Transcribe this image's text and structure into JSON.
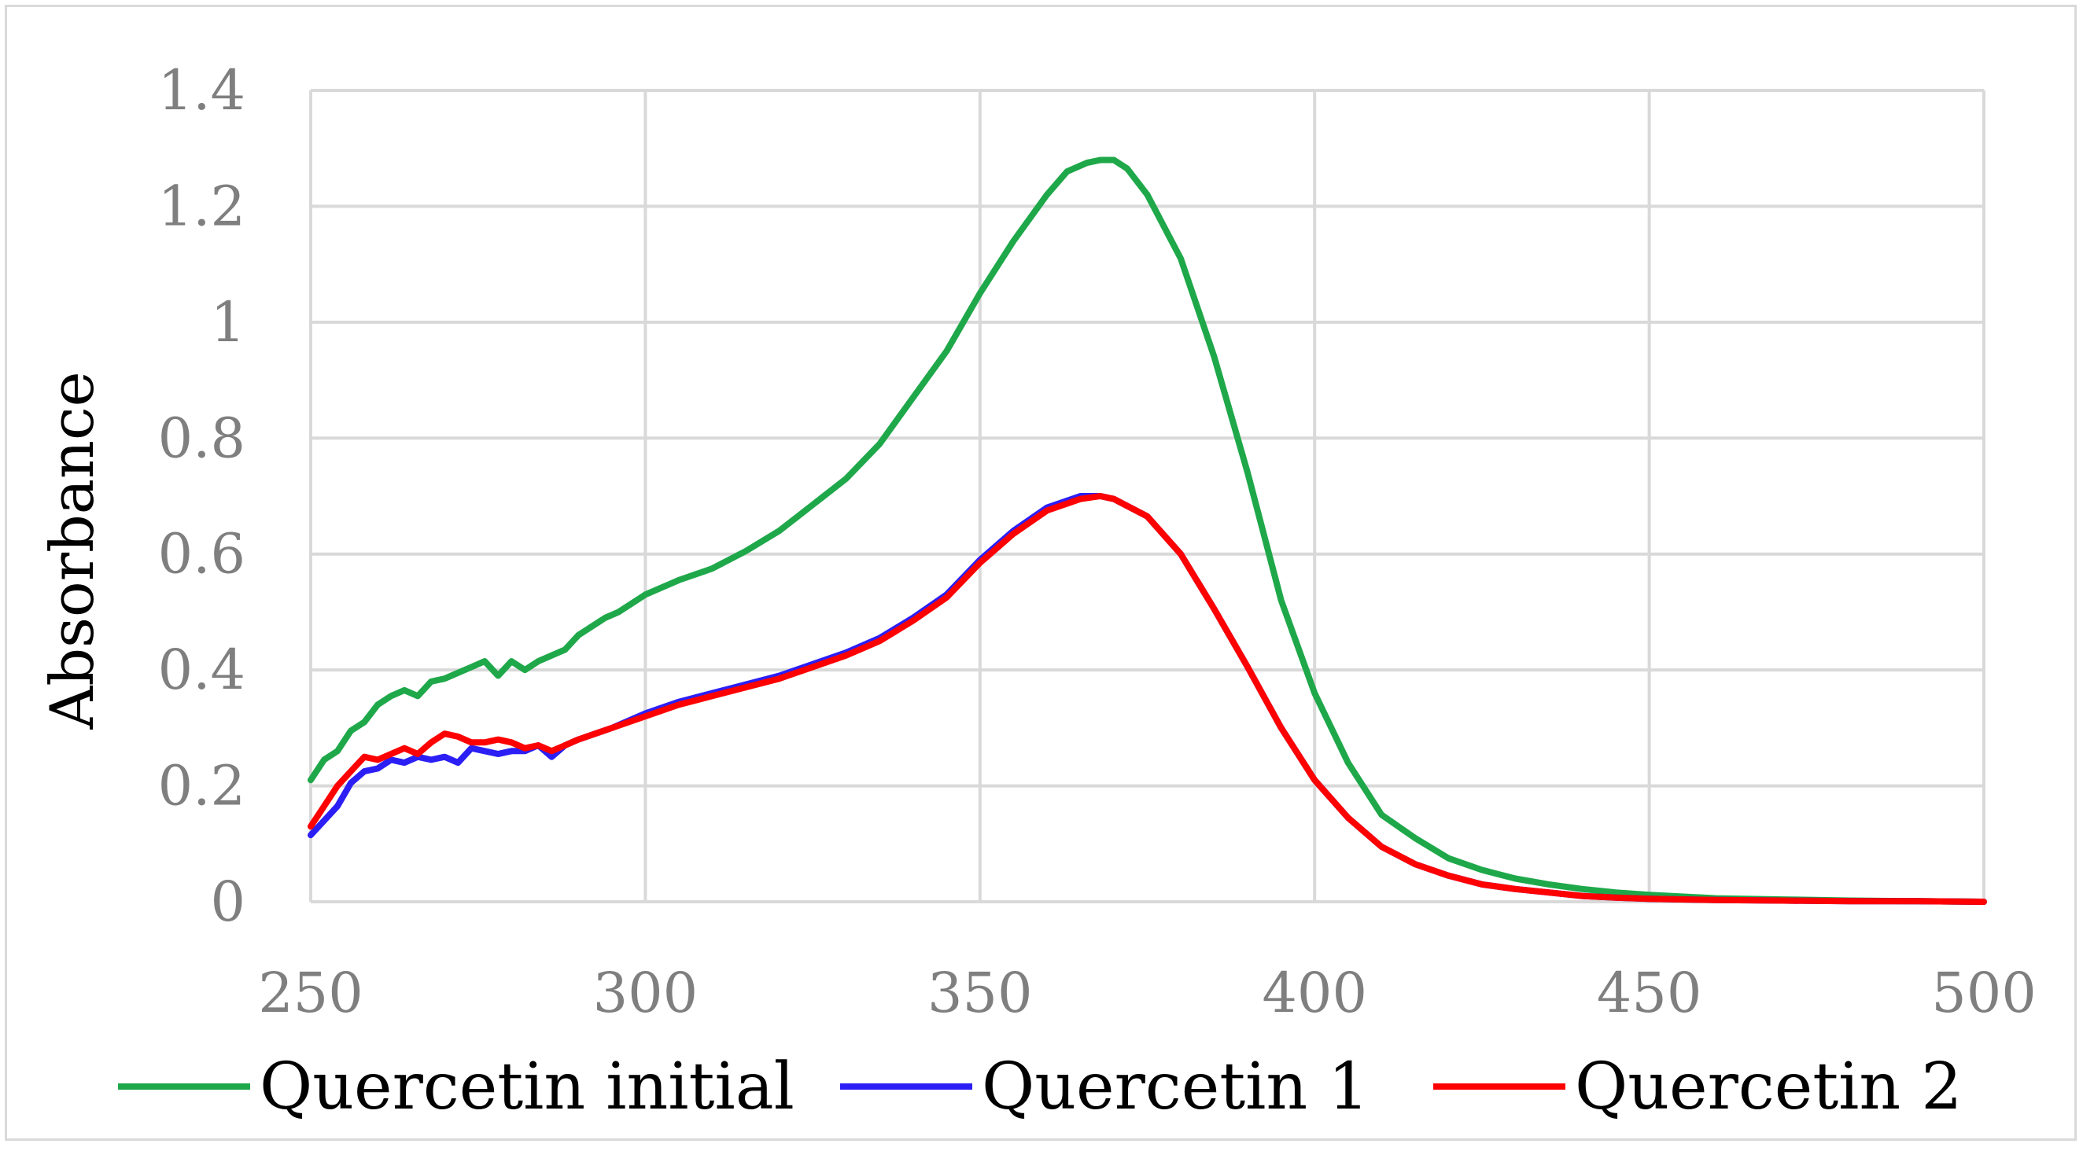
{
  "chart_data": {
    "type": "line",
    "title": "",
    "xlabel": "",
    "ylabel": "Absorbance",
    "xlim": [
      250,
      500
    ],
    "ylim": [
      0,
      1.4
    ],
    "x_ticks": [
      250,
      300,
      350,
      400,
      450,
      500
    ],
    "x_tick_labels": [
      "250",
      "300",
      "350",
      "400",
      "450",
      "500"
    ],
    "y_ticks": [
      0,
      0.2,
      0.4,
      0.6,
      0.8,
      1.0,
      1.2,
      1.4
    ],
    "y_tick_labels": [
      "0",
      "0.2",
      "0.4",
      "0.6",
      "0.8",
      "1",
      "1.2",
      "1.4"
    ],
    "grid": true,
    "legend_position": "bottom",
    "series": [
      {
        "name": "Quercetin initial",
        "color": "#1fa84a",
        "x": [
          250,
          252,
          254,
          256,
          258,
          260,
          262,
          264,
          266,
          268,
          270,
          272,
          274,
          276,
          278,
          280,
          282,
          284,
          286,
          288,
          290,
          292,
          294,
          296,
          298,
          300,
          305,
          310,
          315,
          320,
          325,
          330,
          335,
          340,
          345,
          350,
          355,
          360,
          363,
          366,
          368,
          370,
          372,
          375,
          380,
          385,
          390,
          395,
          400,
          405,
          410,
          415,
          420,
          425,
          430,
          435,
          440,
          445,
          450,
          460,
          470,
          480,
          490,
          500
        ],
        "values": [
          0.21,
          0.245,
          0.26,
          0.295,
          0.31,
          0.34,
          0.355,
          0.365,
          0.355,
          0.38,
          0.385,
          0.395,
          0.405,
          0.415,
          0.39,
          0.415,
          0.4,
          0.415,
          0.425,
          0.435,
          0.46,
          0.475,
          0.49,
          0.5,
          0.515,
          0.53,
          0.555,
          0.575,
          0.605,
          0.64,
          0.685,
          0.73,
          0.79,
          0.87,
          0.95,
          1.05,
          1.14,
          1.22,
          1.26,
          1.275,
          1.28,
          1.28,
          1.265,
          1.22,
          1.11,
          0.94,
          0.74,
          0.52,
          0.36,
          0.24,
          0.15,
          0.11,
          0.075,
          0.055,
          0.04,
          0.03,
          0.022,
          0.016,
          0.012,
          0.006,
          0.004,
          0.002,
          0.001,
          0.0
        ]
      },
      {
        "name": "Quercetin  1",
        "color": "#2b1ff5",
        "x": [
          250,
          252,
          254,
          256,
          258,
          260,
          262,
          264,
          266,
          268,
          270,
          272,
          274,
          276,
          278,
          280,
          282,
          284,
          286,
          288,
          290,
          295,
          300,
          305,
          310,
          315,
          320,
          325,
          330,
          335,
          340,
          345,
          350,
          355,
          360,
          365,
          368,
          370,
          375,
          380,
          385,
          390,
          395,
          400,
          405,
          410,
          415,
          420,
          425,
          430,
          435,
          440,
          445,
          450,
          460,
          470,
          480,
          490,
          500
        ],
        "values": [
          0.115,
          0.14,
          0.165,
          0.205,
          0.225,
          0.23,
          0.245,
          0.24,
          0.25,
          0.245,
          0.25,
          0.24,
          0.265,
          0.26,
          0.255,
          0.26,
          0.26,
          0.27,
          0.25,
          0.27,
          0.28,
          0.3,
          0.325,
          0.345,
          0.36,
          0.375,
          0.39,
          0.41,
          0.43,
          0.455,
          0.49,
          0.53,
          0.59,
          0.64,
          0.68,
          0.7,
          0.7,
          0.695,
          0.665,
          0.6,
          0.505,
          0.405,
          0.3,
          0.21,
          0.145,
          0.095,
          0.065,
          0.045,
          0.03,
          0.022,
          0.016,
          0.01,
          0.007,
          0.005,
          0.003,
          0.002,
          0.001,
          0.001,
          0.0
        ]
      },
      {
        "name": "Quercetin  2",
        "color": "#ff0000",
        "x": [
          250,
          252,
          254,
          256,
          258,
          260,
          262,
          264,
          266,
          268,
          270,
          272,
          274,
          276,
          278,
          280,
          282,
          284,
          286,
          288,
          290,
          295,
          300,
          305,
          310,
          315,
          320,
          325,
          330,
          335,
          340,
          345,
          350,
          355,
          360,
          365,
          368,
          370,
          375,
          380,
          385,
          390,
          395,
          400,
          405,
          410,
          415,
          420,
          425,
          430,
          435,
          440,
          445,
          450,
          460,
          470,
          480,
          490,
          500
        ],
        "values": [
          0.13,
          0.165,
          0.2,
          0.225,
          0.25,
          0.245,
          0.255,
          0.265,
          0.255,
          0.275,
          0.29,
          0.285,
          0.275,
          0.275,
          0.28,
          0.275,
          0.265,
          0.27,
          0.26,
          0.27,
          0.28,
          0.3,
          0.32,
          0.34,
          0.355,
          0.37,
          0.385,
          0.405,
          0.425,
          0.45,
          0.485,
          0.525,
          0.585,
          0.635,
          0.675,
          0.695,
          0.7,
          0.695,
          0.665,
          0.6,
          0.505,
          0.405,
          0.3,
          0.21,
          0.145,
          0.095,
          0.065,
          0.045,
          0.03,
          0.022,
          0.016,
          0.01,
          0.007,
          0.005,
          0.003,
          0.002,
          0.001,
          0.001,
          0.0
        ]
      }
    ]
  }
}
